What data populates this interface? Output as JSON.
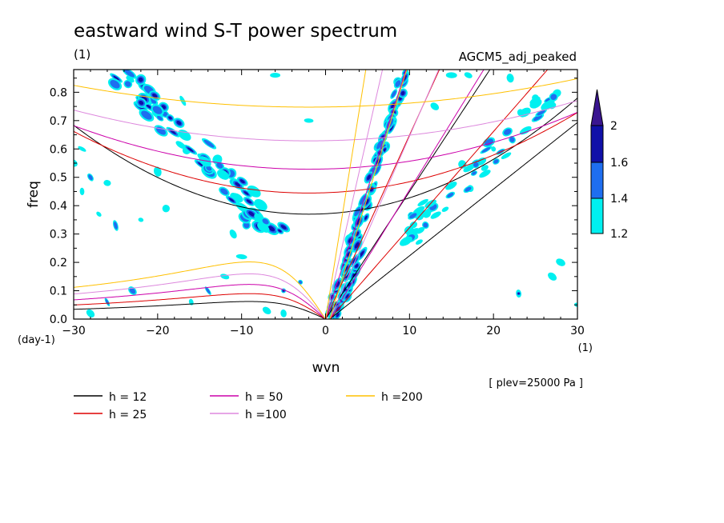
{
  "chart_data": {
    "type": "heatmap",
    "title": "eastward wind S-T power spectrum",
    "subtitle_left": "(1)",
    "subtitle_right": "AGCM5_adj_peaked",
    "xlabel": "wvn",
    "ylabel": "freq",
    "x_unit": "(1)",
    "y_unit": "(day-1)",
    "footnote": "[ plev=25000 Pa ]",
    "xlim": [
      -30,
      30
    ],
    "ylim": [
      0,
      0.88
    ],
    "x_ticks": [
      -30,
      -20,
      -10,
      0,
      10,
      20,
      30
    ],
    "x_tick_labels": [
      "−30",
      "−20",
      "−10",
      "0",
      "10",
      "20",
      "30"
    ],
    "y_ticks": [
      0,
      0.1,
      0.2,
      0.3,
      0.4,
      0.5,
      0.6,
      0.7,
      0.8
    ],
    "y_tick_labels": [
      "0.0",
      "0.1",
      "0.2",
      "0.3",
      "0.4",
      "0.5",
      "0.6",
      "0.7",
      "0.8"
    ],
    "colorbar": {
      "levels": [
        1.2,
        1.4,
        1.6,
        2
      ],
      "labels": [
        "1.2",
        "1.4",
        "1.6",
        "2"
      ],
      "colors": [
        "#00f0f0",
        "#1e6ef0",
        "#1010a8",
        "#3a1590"
      ]
    },
    "contour_colors": [
      "#00f0f0",
      "#1e6ef0",
      "#1010a8"
    ],
    "dispersion_curves": [
      {
        "label": "h = 12",
        "h": 12,
        "color": "#000000"
      },
      {
        "label": "h = 25",
        "h": 25,
        "color": "#dd0000"
      },
      {
        "label": "h = 50",
        "h": 50,
        "color": "#cc00aa"
      },
      {
        "label": "h =100",
        "h": 100,
        "color": "#dd88dd"
      },
      {
        "label": "h =200",
        "h": 200,
        "color": "#ffc000"
      }
    ],
    "spectral_features": [
      {
        "region": "kelvin-band",
        "from": [
          0.5,
          0.0
        ],
        "to": [
          9,
          0.88
        ],
        "value": 2
      },
      {
        "region": "kelvin-upper",
        "from": [
          7.5,
          0.35
        ],
        "to": [
          10,
          0.85
        ],
        "value": 1.6
      },
      {
        "region": "westward-band",
        "from": [
          -24,
          0.86
        ],
        "to": [
          -6,
          0.3
        ],
        "value": 1.6
      },
      {
        "region": "eastward-diagonal",
        "from": [
          9,
          0.28
        ],
        "to": [
          27,
          0.78
        ],
        "value": 1.4
      },
      {
        "region": "left-scatter",
        "from": [
          -30,
          0.45
        ],
        "to": [
          -22,
          0.55
        ],
        "value": 1.2
      }
    ]
  }
}
